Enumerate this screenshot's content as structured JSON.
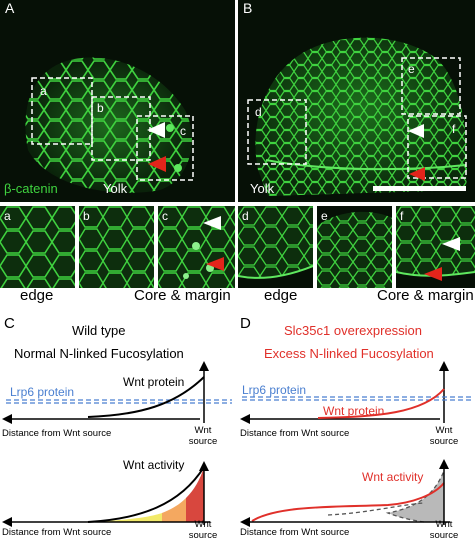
{
  "panels": {
    "A": {
      "letter": "A",
      "inset_letters": [
        "a",
        "b",
        "c"
      ],
      "stain_label": "β-catenin",
      "region_label": "Yolk"
    },
    "B": {
      "letter": "B",
      "inset_letters": [
        "d",
        "e",
        "f"
      ],
      "region_label": "Yolk"
    },
    "thumbs": [
      "a",
      "b",
      "c",
      "d",
      "e",
      "f"
    ],
    "captions": {
      "edge_left": "edge",
      "core_left": "Core & margin",
      "edge_right": "edge",
      "core_right": "Core & margin"
    },
    "C": {
      "letter": "C",
      "title": "Wild type",
      "subtitle": "Normal N-linked Fucosylation",
      "protein_label": "Wnt protein",
      "lrp6_label": "Lrp6 protein",
      "axis_label_top": "Distance from Wnt source",
      "source_label_top": "Wnt source",
      "activity_label": "Wnt activity",
      "axis_label_bottom": "Distance from Wnt source",
      "source_label_bottom": "Wnt source"
    },
    "D": {
      "letter": "D",
      "title": "Slc35c1 overexpression",
      "subtitle": "Excess N-linked Fucosylation",
      "lrp6_label": "Lrp6 protein",
      "protein_label": "Wnt protein",
      "axis_label_top": "Distance from Wnt source",
      "source_label_top": "Wnt source",
      "activity_label": "Wnt activity",
      "axis_label_bottom": "Distance from Wnt source",
      "source_label_bottom": "Wnt source"
    }
  },
  "colors": {
    "membrane_green": "#3fd23f",
    "background_dark": "#061006",
    "lrp6_blue": "#4a7fd0",
    "overexpression_red": "#e0302a",
    "arrow_white": "#ffffff",
    "arrow_red": "#e3241b",
    "gradient_yellow": "#f2ea6a",
    "gradient_orange": "#f4a860",
    "gradient_red": "#d8473e",
    "gradient_gray": "#b9b9b9"
  }
}
